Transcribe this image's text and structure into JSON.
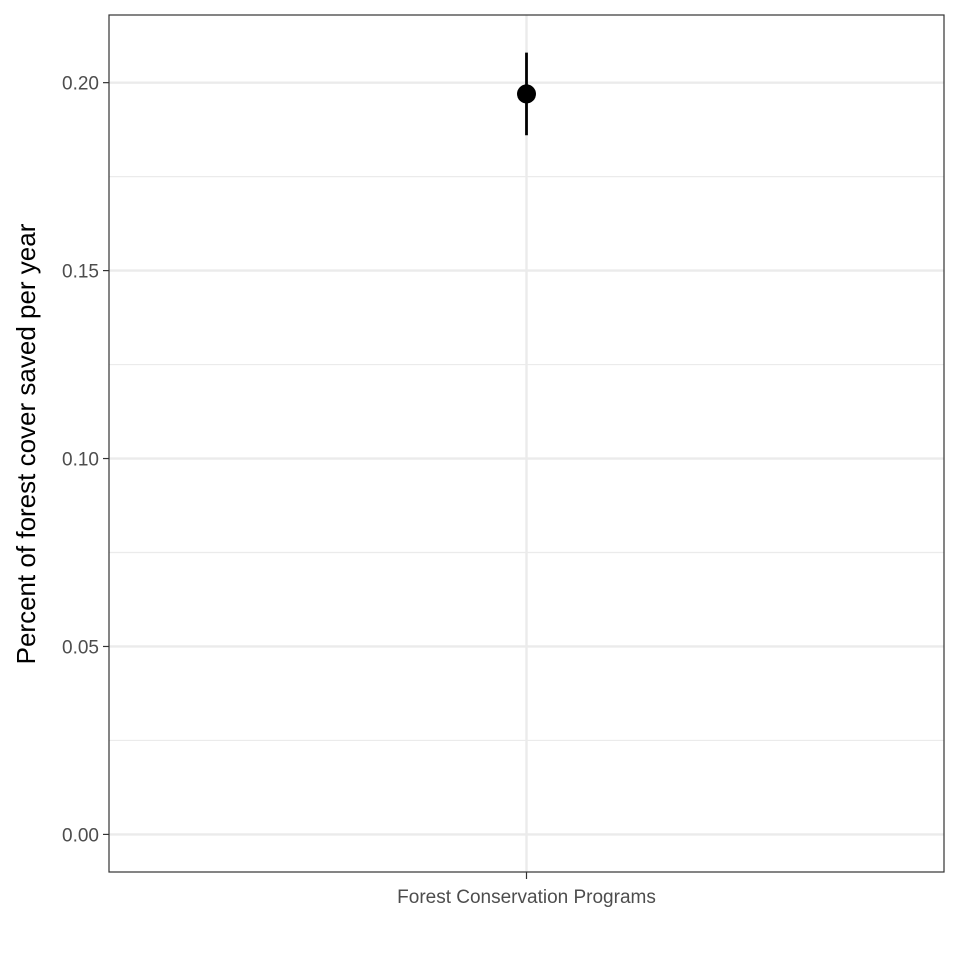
{
  "chart_data": {
    "type": "scatter",
    "title": "",
    "xlabel": "",
    "ylabel": "Percent of forest cover saved per year",
    "categories": [
      "Forest Conservation Programs"
    ],
    "points": [
      {
        "category": "Forest Conservation Programs",
        "y": 0.197,
        "ymin": 0.186,
        "ymax": 0.208
      }
    ],
    "yticks": [
      0.0,
      0.05,
      0.1,
      0.15,
      0.2
    ],
    "ytick_labels": [
      "0.00",
      "0.05",
      "0.10",
      "0.15",
      "0.20"
    ],
    "ylim": [
      -0.01,
      0.218
    ],
    "grid": true,
    "colors": {
      "point": "#000000",
      "grid_major": "#ebebeb",
      "grid_minor": "#ebebeb",
      "panel_border": "#333333",
      "tick_text": "#4d4d4d"
    }
  }
}
